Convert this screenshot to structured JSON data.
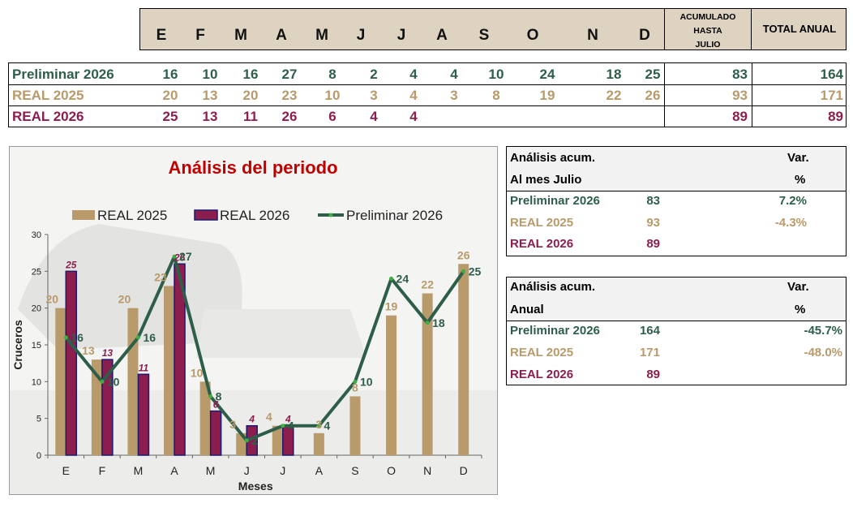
{
  "header": {
    "months": [
      "E",
      "F",
      "M",
      "A",
      "M",
      "J",
      "J",
      "A",
      "S",
      "O",
      "N",
      "D"
    ],
    "acumulado_label": [
      "ACUMULADO",
      "HASTA",
      "JULIO"
    ],
    "total_label": "TOTAL ANUAL"
  },
  "table": {
    "rows": [
      {
        "label": "Preliminar 2026",
        "values": [
          "16",
          "10",
          "16",
          "27",
          "8",
          "2",
          "4",
          "4",
          "10",
          "24",
          "18",
          "25"
        ],
        "acumulado": "83",
        "total": "164",
        "color": "#2e5e4a"
      },
      {
        "label": "REAL 2025",
        "values": [
          "20",
          "13",
          "20",
          "23",
          "10",
          "3",
          "4",
          "3",
          "8",
          "19",
          "22",
          "26"
        ],
        "acumulado": "93",
        "total": "171",
        "color": "#b89a6b"
      },
      {
        "label": "REAL 2026",
        "values": [
          "25",
          "13",
          "11",
          "26",
          "6",
          "4",
          "4",
          "",
          "",
          "",
          "",
          ""
        ],
        "acumulado": "89",
        "total": "89",
        "color": "#8b1e4e"
      }
    ]
  },
  "chart_data": {
    "type": "bar",
    "title": "Análisis del periodo",
    "xlabel": "Meses",
    "ylabel": "Cruceros",
    "categories": [
      "E",
      "F",
      "M",
      "A",
      "M",
      "J",
      "J",
      "A",
      "S",
      "O",
      "N",
      "D"
    ],
    "ylim": [
      0,
      30
    ],
    "yticks": [
      "0",
      "5",
      "10",
      "15",
      "20",
      "25",
      "30"
    ],
    "legend_position": "top",
    "series": [
      {
        "name": "REAL 2025",
        "kind": "bar",
        "color": "#b89a6b",
        "values": [
          20,
          13,
          20,
          23,
          10,
          3,
          4,
          3,
          8,
          19,
          22,
          26
        ]
      },
      {
        "name": "REAL 2026",
        "kind": "bar",
        "color": "#8b1e4e",
        "values": [
          25,
          13,
          11,
          26,
          6,
          4,
          4,
          null,
          null,
          null,
          null,
          null
        ]
      },
      {
        "name": "Preliminar 2026",
        "kind": "line",
        "color": "#2e5e4a",
        "values": [
          16,
          10,
          16,
          27,
          8,
          2,
          4,
          4,
          10,
          24,
          18,
          25
        ]
      }
    ]
  },
  "analysis_month": {
    "title": "Análisis acum.",
    "subtitle": "Al mes Julio",
    "var_label": "Var.",
    "pct_label": "%",
    "rows": [
      {
        "label": "Preliminar 2026",
        "value": "83",
        "var": "7.2%"
      },
      {
        "label": "REAL 2025",
        "value": "93",
        "var": "-4.3%"
      },
      {
        "label": "REAL 2026",
        "value": "89",
        "var": ""
      }
    ]
  },
  "analysis_year": {
    "title": "Análisis acum.",
    "subtitle": "Anual",
    "var_label": "Var.",
    "pct_label": "%",
    "rows": [
      {
        "label": "Preliminar 2026",
        "value": "164",
        "var": "-45.7%"
      },
      {
        "label": "REAL 2025",
        "value": "171",
        "var": "-48.0%"
      },
      {
        "label": "REAL 2026",
        "value": "89",
        "var": ""
      }
    ]
  }
}
